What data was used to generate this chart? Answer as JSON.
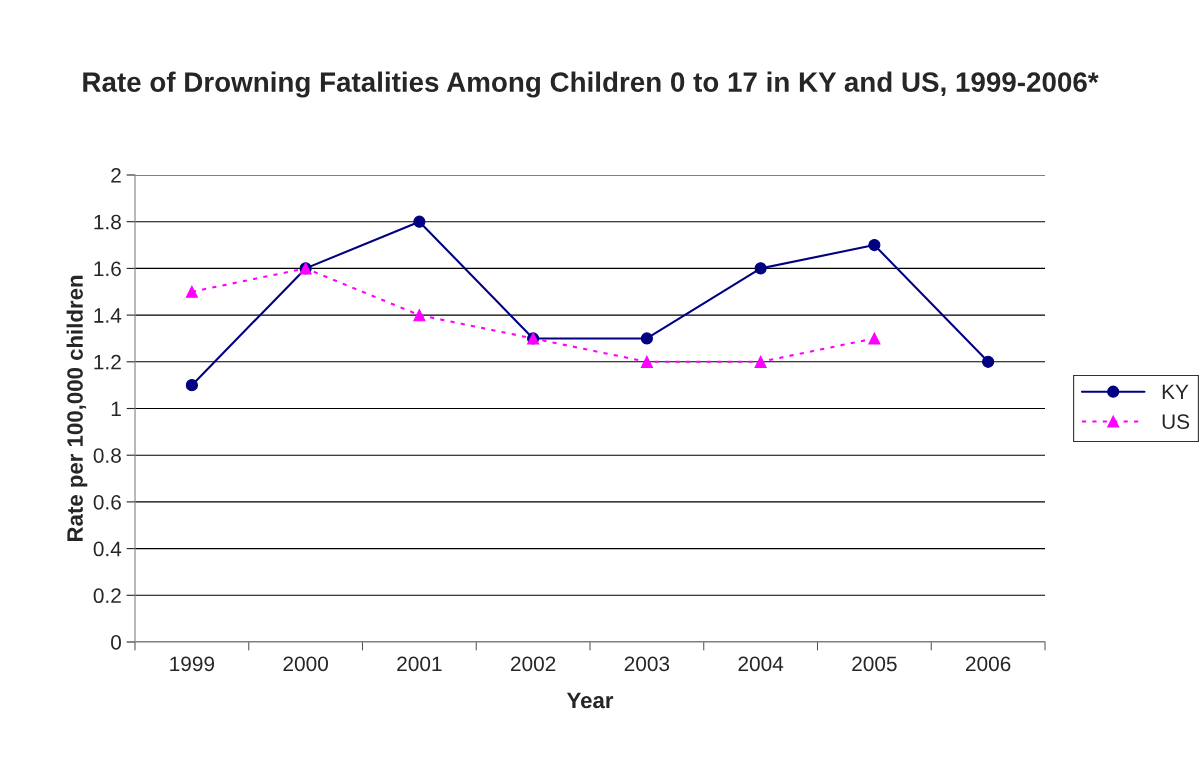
{
  "chart_data": {
    "type": "line",
    "title": "Rate of Drowning Fatalities Among Children 0 to 17 in KY and US, 1999-2006*",
    "xlabel": "Year",
    "ylabel": "Rate per 100,000 children",
    "categories": [
      "1999",
      "2000",
      "2001",
      "2002",
      "2003",
      "2004",
      "2005",
      "2006"
    ],
    "series": [
      {
        "name": "KY",
        "color": "#000080",
        "marker": "circle",
        "line_style": "solid",
        "values": [
          1.1,
          1.6,
          1.8,
          1.3,
          1.3,
          1.6,
          1.7,
          1.2
        ]
      },
      {
        "name": "US",
        "color": "#ff00ff",
        "marker": "triangle",
        "line_style": "dotted",
        "values": [
          1.5,
          1.6,
          1.4,
          1.3,
          1.2,
          1.2,
          1.3,
          null
        ]
      }
    ],
    "ylim": [
      0,
      2
    ],
    "yticks": [
      0,
      {
        "value": 0.2,
        "label": "0.2"
      },
      {
        "value": 0.4,
        "label": "0.4"
      },
      {
        "value": 0.6,
        "label": "0.6"
      },
      {
        "value": 0.8,
        "label": "0.8"
      },
      1,
      {
        "value": 1.2,
        "label": "1.2"
      },
      {
        "value": 1.4,
        "label": "1.4"
      },
      {
        "value": 1.6,
        "label": "1.6"
      },
      {
        "value": 1.8,
        "label": "1.8"
      },
      2
    ],
    "grid": "y",
    "legend": "right"
  }
}
